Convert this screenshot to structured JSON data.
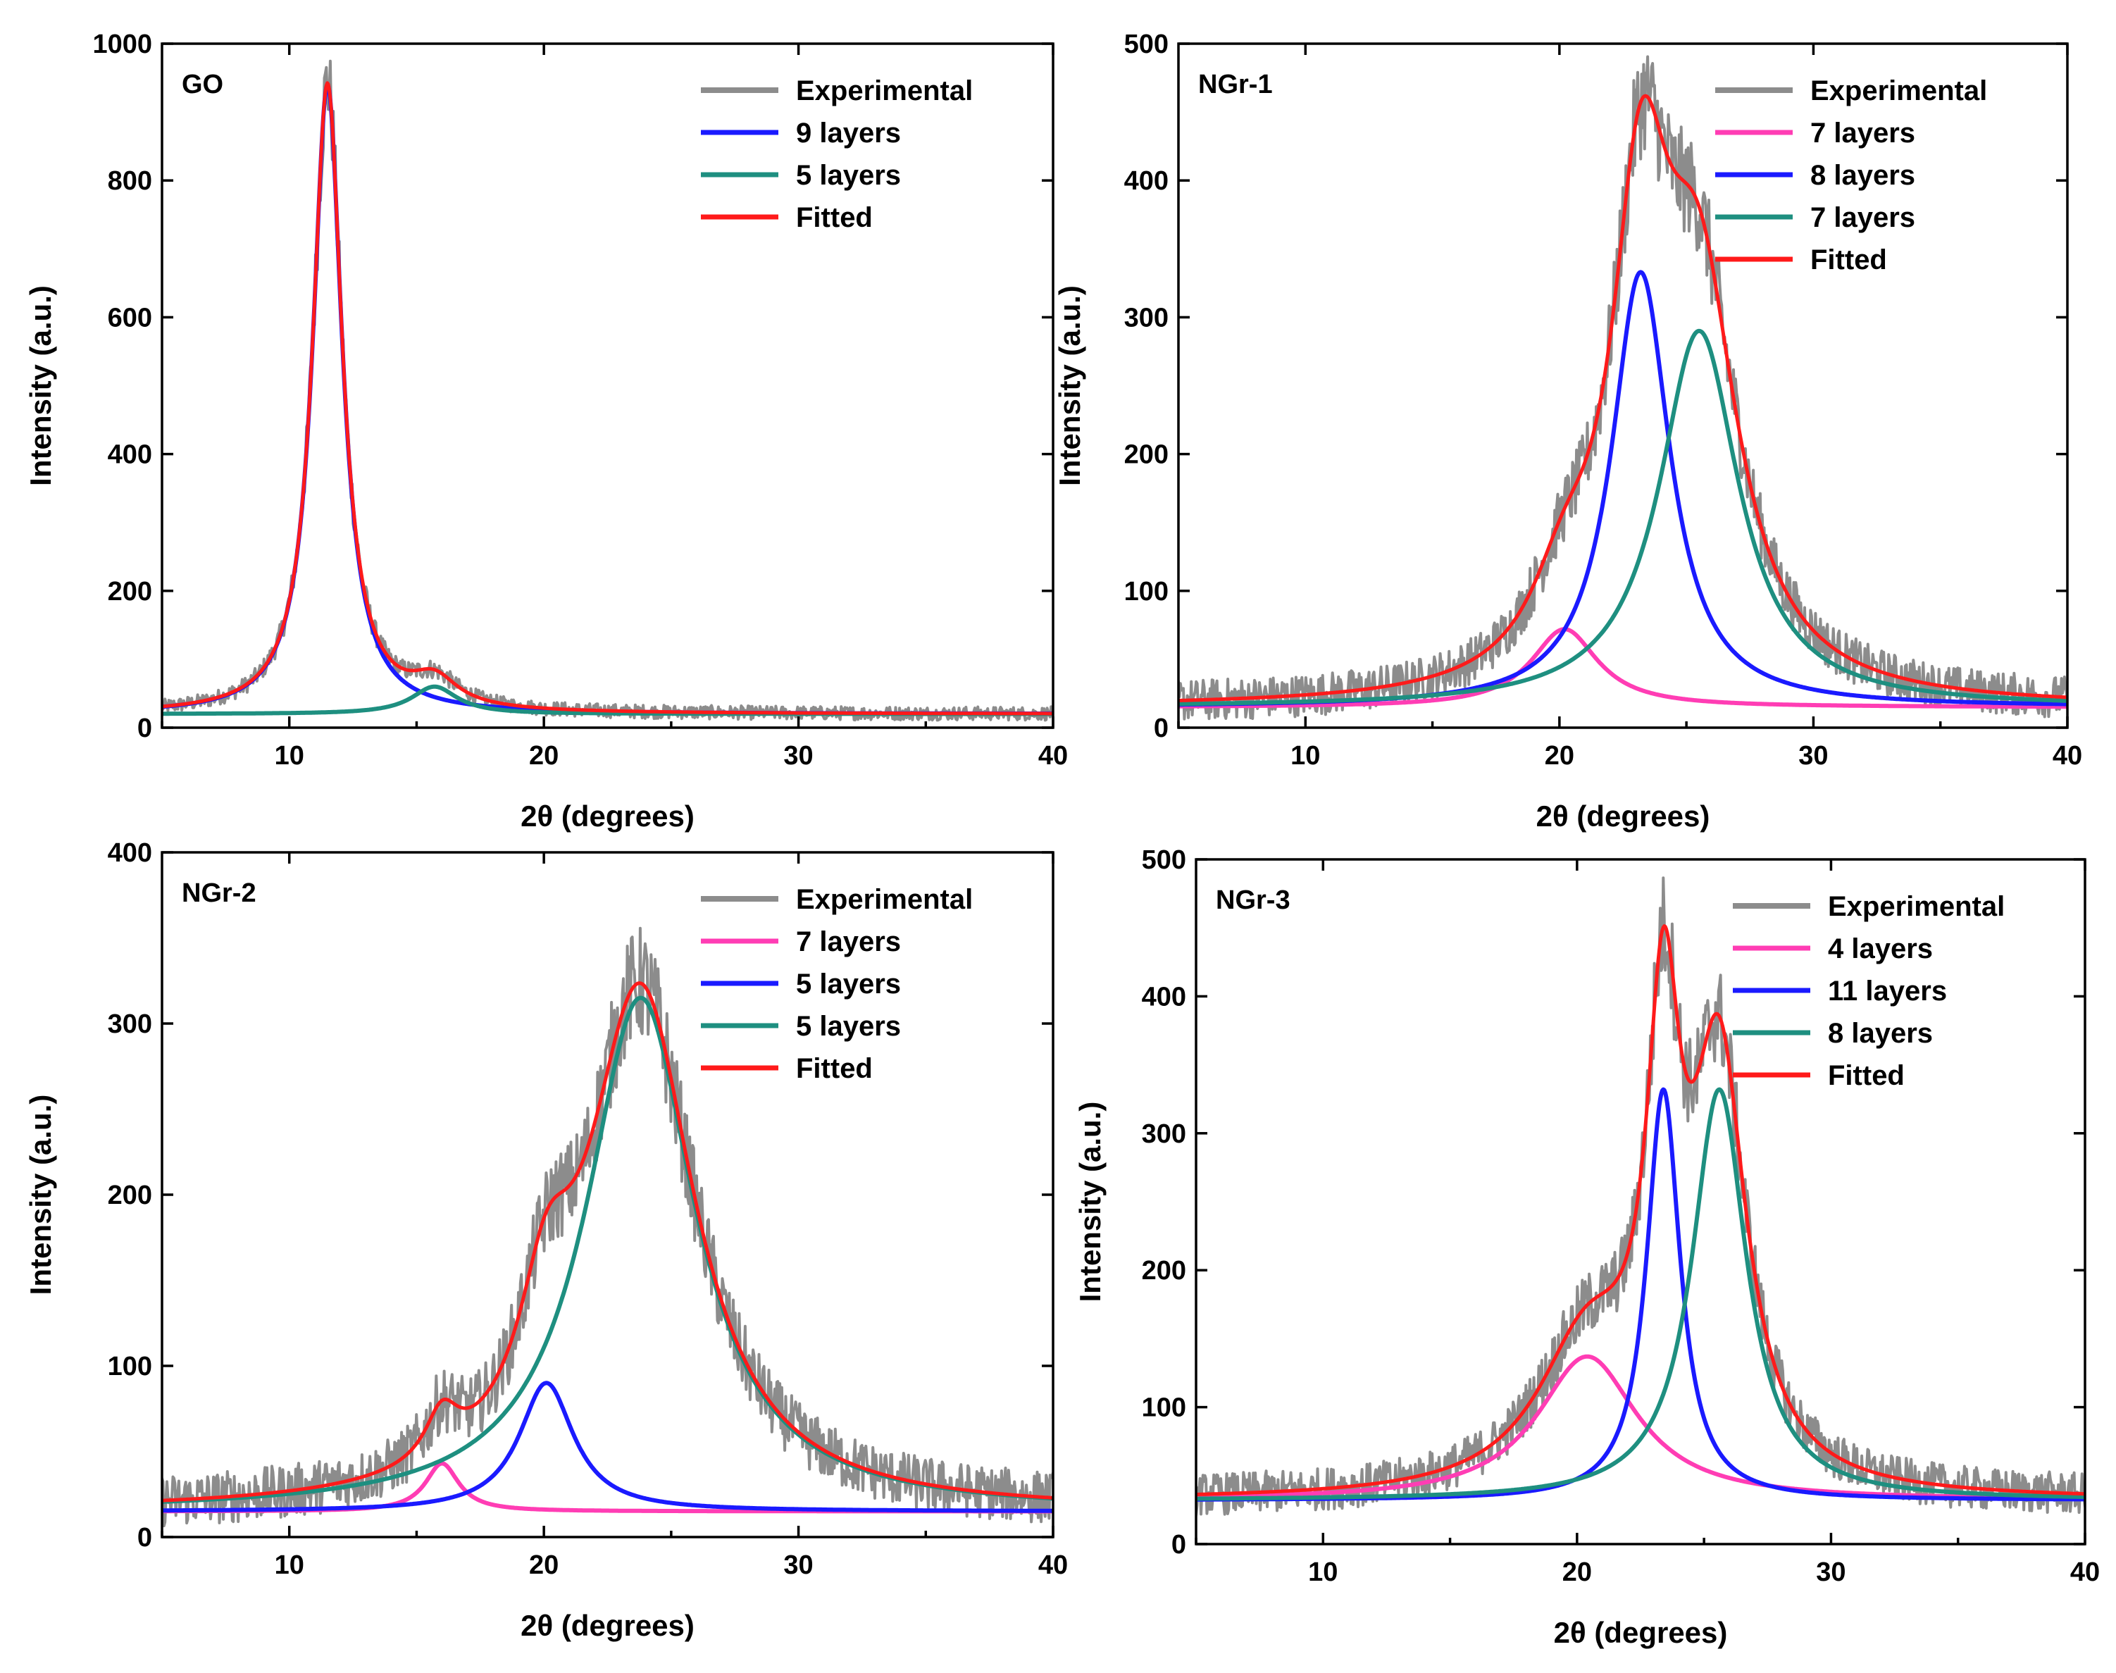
{
  "figure": {
    "colors": {
      "experimental": "#8c8c8c",
      "magenta": "#ff3db4",
      "blue": "#1a1aff",
      "teal": "#1e8f80",
      "fitted": "#ff1a1a"
    }
  },
  "chart_data": [
    {
      "type": "line",
      "panel_label": "GO",
      "xlabel": "2θ (degrees)",
      "ylabel": "Intensity (a.u.)",
      "xlim": [
        5,
        40
      ],
      "ylim": [
        0,
        1000
      ],
      "xticks": [
        10,
        20,
        30,
        40
      ],
      "xtick_labels": [
        "10",
        "20",
        "30",
        "40"
      ],
      "yticks": [
        0,
        200,
        400,
        600,
        800,
        1000
      ],
      "ytick_labels": [
        "0",
        "200",
        "400",
        "600",
        "800",
        "1000"
      ],
      "baseline": 20,
      "noise": 10,
      "components": [
        {
          "name": "9 layers",
          "color": "blue",
          "center": 11.5,
          "amplitude": 920,
          "width": 0.7
        },
        {
          "name": "5 layers",
          "color": "teal",
          "center": 15.7,
          "amplitude": 40,
          "width": 1.1
        }
      ],
      "series": [
        {
          "name": "Experimental",
          "color": "experimental",
          "kind": "experimental"
        },
        {
          "name": "9 layers",
          "color": "blue",
          "kind": "component",
          "index": 0
        },
        {
          "name": "5 layers",
          "color": "teal",
          "kind": "component",
          "index": 1
        },
        {
          "name": "Fitted",
          "color": "fitted",
          "kind": "fitted"
        }
      ]
    },
    {
      "type": "line",
      "panel_label": "NGr-1",
      "xlabel": "2θ (degrees)",
      "ylabel": "Intensity (a.u.)",
      "xlim": [
        5,
        40
      ],
      "ylim": [
        0,
        500
      ],
      "xticks": [
        10,
        20,
        30,
        40
      ],
      "xtick_labels": [
        "10",
        "20",
        "30",
        "40"
      ],
      "yticks": [
        0,
        100,
        200,
        300,
        400,
        500
      ],
      "ytick_labels": [
        "0",
        "100",
        "200",
        "300",
        "400",
        "500"
      ],
      "baseline": 15,
      "noise": 15,
      "components": [
        {
          "name": "7 layers",
          "color": "magenta",
          "center": 20.2,
          "amplitude": 57,
          "width": 1.6
        },
        {
          "name": "8 layers",
          "color": "blue",
          "center": 23.2,
          "amplitude": 318,
          "width": 1.4
        },
        {
          "name": "7 layers",
          "color": "teal",
          "center": 25.5,
          "amplitude": 275,
          "width": 1.9
        }
      ],
      "series": [
        {
          "name": "Experimental",
          "color": "experimental",
          "kind": "experimental"
        },
        {
          "name": "7 layers",
          "color": "magenta",
          "kind": "component",
          "index": 0
        },
        {
          "name": "8 layers",
          "color": "blue",
          "kind": "component",
          "index": 1
        },
        {
          "name": "7 layers",
          "color": "teal",
          "kind": "component",
          "index": 2
        },
        {
          "name": "Fitted",
          "color": "fitted",
          "kind": "fitted"
        }
      ]
    },
    {
      "type": "line",
      "panel_label": "NGr-2",
      "xlabel": "2θ (degrees)",
      "ylabel": "Intensity (a.u.)",
      "xlim": [
        5,
        40
      ],
      "ylim": [
        0,
        400
      ],
      "xticks": [
        10,
        20,
        30,
        40
      ],
      "xtick_labels": [
        "10",
        "20",
        "30",
        "40"
      ],
      "yticks": [
        0,
        100,
        200,
        300,
        400
      ],
      "ytick_labels": [
        "0",
        "100",
        "200",
        "300",
        "400"
      ],
      "baseline": 15,
      "noise": 15,
      "components": [
        {
          "name": "7 layers",
          "color": "magenta",
          "center": 16.0,
          "amplitude": 28,
          "width": 0.8
        },
        {
          "name": "5 layers",
          "color": "blue",
          "center": 20.1,
          "amplitude": 75,
          "width": 1.3
        },
        {
          "name": "5 layers",
          "color": "teal",
          "center": 23.8,
          "amplitude": 300,
          "width": 2.6
        }
      ],
      "series": [
        {
          "name": "Experimental",
          "color": "experimental",
          "kind": "experimental"
        },
        {
          "name": "7 layers",
          "color": "magenta",
          "kind": "component",
          "index": 0
        },
        {
          "name": "5 layers",
          "color": "blue",
          "kind": "component",
          "index": 1
        },
        {
          "name": "5 layers",
          "color": "teal",
          "kind": "component",
          "index": 2
        },
        {
          "name": "Fitted",
          "color": "fitted",
          "kind": "fitted"
        }
      ]
    },
    {
      "type": "line",
      "panel_label": "NGr-3",
      "xlabel": "2θ (degrees)",
      "ylabel": "Intensity (a.u.)",
      "xlim": [
        5,
        40
      ],
      "ylim": [
        0,
        500
      ],
      "xticks": [
        10,
        20,
        30,
        40
      ],
      "xtick_labels": [
        "10",
        "20",
        "30",
        "40"
      ],
      "yticks": [
        0,
        100,
        200,
        300,
        400,
        500
      ],
      "ytick_labels": [
        "0",
        "100",
        "200",
        "300",
        "400",
        "500"
      ],
      "baseline": 32,
      "noise": 15,
      "components": [
        {
          "name": "4 layers",
          "color": "magenta",
          "center": 20.4,
          "amplitude": 105,
          "width": 2.4
        },
        {
          "name": "11 layers",
          "color": "blue",
          "center": 23.4,
          "amplitude": 300,
          "width": 0.8
        },
        {
          "name": "8 layers",
          "color": "teal",
          "center": 25.6,
          "amplitude": 300,
          "width": 1.3
        }
      ],
      "series": [
        {
          "name": "Experimental",
          "color": "experimental",
          "kind": "experimental"
        },
        {
          "name": "4 layers",
          "color": "magenta",
          "kind": "component",
          "index": 0
        },
        {
          "name": "11 layers",
          "color": "blue",
          "kind": "component",
          "index": 1
        },
        {
          "name": "8 layers",
          "color": "teal",
          "kind": "component",
          "index": 2
        },
        {
          "name": "Fitted",
          "color": "fitted",
          "kind": "fitted"
        }
      ]
    }
  ]
}
